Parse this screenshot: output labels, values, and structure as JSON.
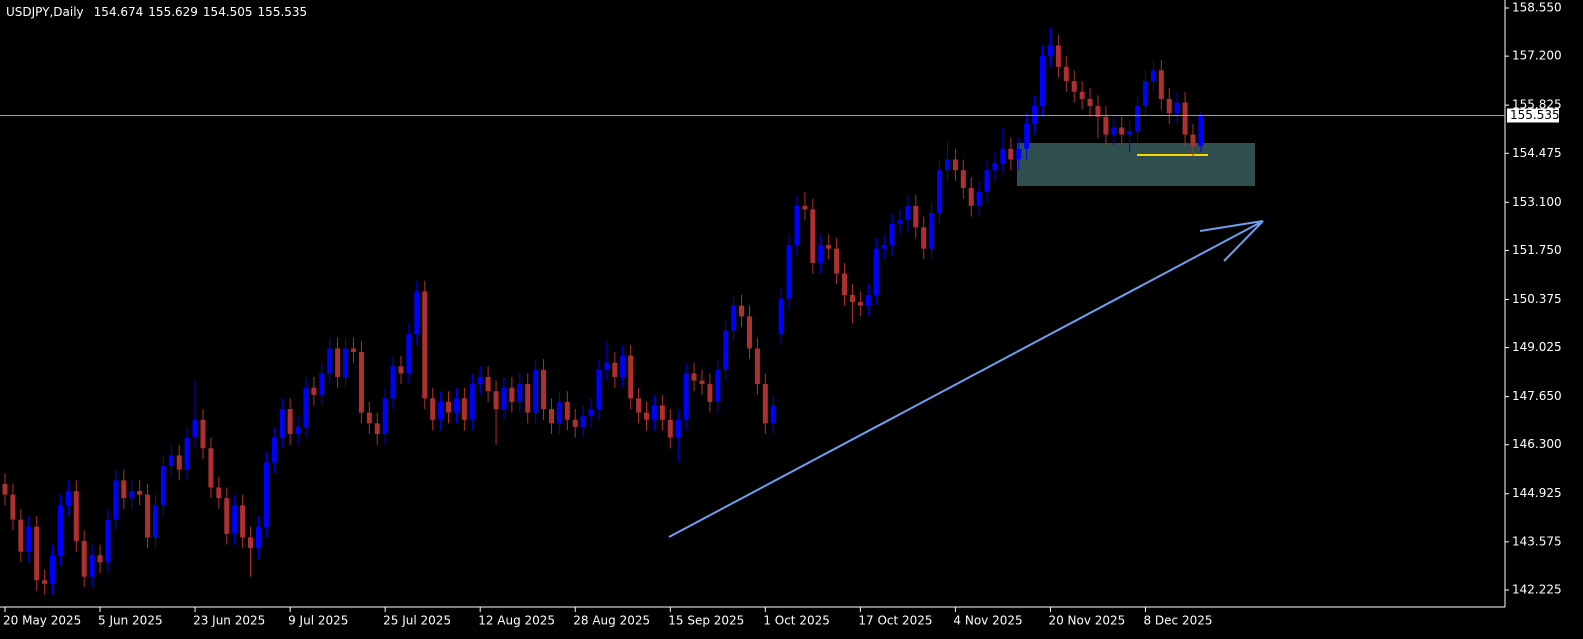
{
  "chart_data": {
    "type": "candlestick",
    "symbol": "USDJPY,Daily",
    "up_color": "#0000ff",
    "down_color": "#b03030",
    "ylim": [
      142.225,
      158.55
    ],
    "yticks": [
      {
        "value": 158.55,
        "label": "158.550"
      },
      {
        "value": 157.2,
        "label": "157.200"
      },
      {
        "value": 155.825,
        "label": "155.825"
      },
      {
        "value": 154.475,
        "label": "154.475"
      },
      {
        "value": 153.1,
        "label": "153.100"
      },
      {
        "value": 151.75,
        "label": "151.750"
      },
      {
        "value": 150.375,
        "label": "150.375"
      },
      {
        "value": 149.025,
        "label": "149.025"
      },
      {
        "value": 147.65,
        "label": "147.650"
      },
      {
        "value": 146.3,
        "label": "146.300"
      },
      {
        "value": 144.925,
        "label": "144.925"
      },
      {
        "value": 143.575,
        "label": "143.575"
      },
      {
        "value": 142.225,
        "label": "142.225"
      }
    ],
    "categories": [
      "20 May 2025",
      null,
      null,
      null,
      null,
      null,
      null,
      null,
      null,
      null,
      null,
      null,
      "5 Jun 2025",
      null,
      null,
      null,
      null,
      null,
      null,
      null,
      null,
      null,
      null,
      null,
      "23 Jun 2025",
      null,
      null,
      null,
      null,
      null,
      null,
      null,
      null,
      null,
      null,
      null,
      "9 Jul 2025",
      null,
      null,
      null,
      null,
      null,
      null,
      null,
      null,
      null,
      null,
      null,
      "25 Jul 2025",
      null,
      null,
      null,
      null,
      null,
      null,
      null,
      null,
      null,
      null,
      null,
      "12 Aug 2025",
      null,
      null,
      null,
      null,
      null,
      null,
      null,
      null,
      null,
      null,
      null,
      "28 Aug 2025",
      null,
      null,
      null,
      null,
      null,
      null,
      null,
      null,
      null,
      null,
      null,
      "15 Sep 2025",
      null,
      null,
      null,
      null,
      null,
      null,
      null,
      null,
      null,
      null,
      null,
      "1 Oct 2025",
      null,
      null,
      null,
      null,
      null,
      null,
      null,
      null,
      null,
      null,
      null,
      "17 Oct 2025",
      null,
      null,
      null,
      null,
      null,
      null,
      null,
      null,
      null,
      null,
      null,
      "4 Nov 2025",
      null,
      null,
      null,
      null,
      null,
      null,
      null,
      null,
      null,
      null,
      null,
      "20 Nov 2025",
      null,
      null,
      null,
      null,
      null,
      null,
      null,
      null,
      null,
      null,
      null,
      "8 Dec 2025",
      null,
      null,
      null,
      null,
      null,
      null,
      null
    ],
    "ohlc": [
      [
        145.2,
        145.5,
        144.6,
        144.9
      ],
      [
        144.9,
        145.2,
        143.9,
        144.2
      ],
      [
        144.2,
        144.5,
        143.0,
        143.3
      ],
      [
        143.3,
        144.3,
        143.0,
        144.0
      ],
      [
        144.0,
        144.3,
        142.2,
        142.5
      ],
      [
        142.5,
        142.8,
        142.1,
        142.4
      ],
      [
        142.4,
        143.5,
        142.1,
        143.2
      ],
      [
        143.2,
        144.9,
        142.9,
        144.6
      ],
      [
        144.6,
        145.3,
        144.3,
        145.0
      ],
      [
        145.0,
        145.3,
        143.3,
        143.6
      ],
      [
        143.6,
        143.9,
        142.3,
        142.6
      ],
      [
        142.6,
        143.5,
        142.3,
        143.2
      ],
      [
        143.2,
        143.5,
        142.7,
        143.0
      ],
      [
        143.0,
        144.5,
        142.7,
        144.2
      ],
      [
        144.2,
        145.6,
        143.9,
        145.3
      ],
      [
        145.3,
        145.6,
        144.5,
        144.8
      ],
      [
        144.8,
        145.3,
        144.5,
        145.0
      ],
      [
        145.0,
        145.3,
        144.6,
        144.9
      ],
      [
        144.9,
        145.2,
        143.4,
        143.7
      ],
      [
        143.7,
        144.9,
        143.4,
        144.6
      ],
      [
        144.6,
        146.0,
        144.3,
        145.7
      ],
      [
        145.7,
        146.3,
        145.4,
        146.0
      ],
      [
        146.0,
        146.3,
        145.3,
        145.6
      ],
      [
        145.6,
        146.8,
        145.3,
        146.5
      ],
      [
        146.5,
        148.1,
        146.2,
        147.0
      ],
      [
        147.0,
        147.3,
        145.9,
        146.2
      ],
      [
        146.2,
        146.5,
        144.8,
        145.1
      ],
      [
        145.1,
        145.4,
        144.5,
        144.8
      ],
      [
        144.8,
        145.1,
        143.5,
        143.8
      ],
      [
        143.8,
        144.9,
        143.5,
        144.6
      ],
      [
        144.6,
        144.9,
        143.4,
        143.7
      ],
      [
        143.7,
        144.0,
        142.6,
        143.4
      ],
      [
        143.4,
        144.3,
        143.1,
        144.0
      ],
      [
        144.0,
        146.1,
        143.7,
        145.8
      ],
      [
        145.8,
        146.8,
        145.5,
        146.5
      ],
      [
        146.5,
        147.6,
        146.2,
        147.3
      ],
      [
        147.3,
        147.6,
        146.3,
        146.6
      ],
      [
        146.6,
        147.1,
        146.3,
        146.8
      ],
      [
        146.8,
        148.2,
        146.5,
        147.9
      ],
      [
        147.9,
        148.2,
        147.4,
        147.7
      ],
      [
        147.7,
        148.6,
        147.4,
        148.3
      ],
      [
        148.3,
        149.3,
        148.0,
        149.0
      ],
      [
        149.0,
        149.3,
        147.9,
        148.2
      ],
      [
        148.2,
        149.3,
        147.9,
        149.0
      ],
      [
        149.0,
        149.3,
        148.6,
        148.9
      ],
      [
        148.9,
        149.2,
        146.9,
        147.2
      ],
      [
        147.2,
        147.5,
        146.6,
        146.9
      ],
      [
        146.9,
        147.2,
        146.3,
        146.6
      ],
      [
        146.6,
        147.9,
        146.3,
        147.6
      ],
      [
        147.6,
        148.8,
        147.3,
        148.5
      ],
      [
        148.5,
        148.8,
        148.0,
        148.3
      ],
      [
        148.3,
        149.7,
        148.0,
        149.4
      ],
      [
        149.4,
        150.9,
        149.1,
        150.6
      ],
      [
        150.6,
        150.9,
        147.3,
        147.6
      ],
      [
        147.6,
        147.9,
        146.7,
        147.0
      ],
      [
        147.0,
        147.8,
        146.7,
        147.5
      ],
      [
        147.5,
        147.8,
        146.9,
        147.2
      ],
      [
        147.2,
        147.9,
        146.9,
        147.6
      ],
      [
        147.6,
        147.9,
        146.7,
        147.0
      ],
      [
        147.0,
        148.3,
        146.7,
        148.0
      ],
      [
        148.0,
        148.5,
        147.7,
        148.2
      ],
      [
        148.2,
        148.5,
        147.5,
        147.8
      ],
      [
        147.8,
        148.1,
        146.3,
        147.3
      ],
      [
        147.3,
        148.2,
        147.0,
        147.9
      ],
      [
        147.9,
        148.2,
        147.2,
        147.5
      ],
      [
        147.5,
        148.3,
        147.2,
        148.0
      ],
      [
        148.0,
        148.3,
        146.9,
        147.2
      ],
      [
        147.2,
        148.7,
        146.9,
        148.4
      ],
      [
        148.4,
        148.7,
        147.0,
        147.3
      ],
      [
        147.3,
        147.6,
        146.6,
        146.9
      ],
      [
        146.9,
        147.8,
        146.6,
        147.5
      ],
      [
        147.5,
        147.8,
        146.7,
        147.0
      ],
      [
        147.0,
        147.3,
        146.5,
        146.8
      ],
      [
        146.8,
        147.4,
        146.5,
        147.1
      ],
      [
        147.1,
        147.6,
        146.8,
        147.3
      ],
      [
        147.3,
        148.7,
        147.0,
        148.4
      ],
      [
        148.4,
        149.2,
        148.1,
        148.6
      ],
      [
        148.6,
        148.9,
        147.9,
        148.2
      ],
      [
        148.2,
        149.1,
        147.9,
        148.8
      ],
      [
        148.8,
        149.1,
        147.3,
        147.6
      ],
      [
        147.6,
        147.9,
        146.9,
        147.2
      ],
      [
        147.2,
        147.5,
        146.7,
        147.0
      ],
      [
        147.0,
        147.7,
        146.7,
        147.4
      ],
      [
        147.4,
        147.7,
        146.7,
        147.0
      ],
      [
        147.0,
        147.3,
        146.2,
        146.5
      ],
      [
        146.5,
        147.3,
        145.8,
        147.0
      ],
      [
        147.0,
        148.6,
        146.7,
        148.3
      ],
      [
        148.3,
        148.6,
        147.8,
        148.1
      ],
      [
        148.1,
        148.4,
        147.7,
        148.0
      ],
      [
        148.0,
        148.3,
        147.2,
        147.5
      ],
      [
        147.5,
        148.7,
        147.2,
        148.4
      ],
      [
        148.4,
        149.8,
        148.1,
        149.5
      ],
      [
        149.5,
        150.5,
        149.2,
        150.2
      ],
      [
        150.2,
        150.5,
        149.6,
        149.9
      ],
      [
        149.9,
        150.2,
        148.7,
        149.0
      ],
      [
        149.0,
        149.3,
        147.7,
        148.0
      ],
      [
        148.0,
        148.3,
        146.6,
        146.9
      ],
      [
        146.9,
        147.7,
        146.6,
        147.4
      ],
      [
        149.4,
        150.7,
        149.1,
        150.4
      ],
      [
        150.4,
        152.2,
        150.1,
        151.9
      ],
      [
        151.9,
        153.3,
        151.6,
        153.0
      ],
      [
        153.0,
        153.4,
        152.6,
        152.9
      ],
      [
        152.9,
        153.2,
        151.1,
        151.4
      ],
      [
        151.4,
        152.2,
        151.1,
        151.9
      ],
      [
        151.9,
        152.2,
        151.5,
        151.8
      ],
      [
        151.8,
        152.1,
        150.8,
        151.1
      ],
      [
        151.1,
        151.4,
        150.2,
        150.5
      ],
      [
        150.5,
        150.8,
        149.7,
        150.3
      ],
      [
        150.3,
        150.6,
        149.9,
        150.2
      ],
      [
        150.2,
        150.8,
        149.9,
        150.5
      ],
      [
        150.5,
        152.1,
        150.2,
        151.8
      ],
      [
        151.8,
        152.2,
        151.5,
        151.9
      ],
      [
        151.9,
        152.8,
        151.6,
        152.5
      ],
      [
        152.5,
        152.9,
        152.2,
        152.6
      ],
      [
        152.6,
        153.3,
        152.3,
        153.0
      ],
      [
        153.0,
        153.3,
        152.1,
        152.4
      ],
      [
        152.4,
        152.7,
        151.5,
        151.8
      ],
      [
        151.8,
        153.1,
        151.5,
        152.8
      ],
      [
        152.8,
        154.3,
        152.5,
        154.0
      ],
      [
        154.0,
        154.8,
        153.7,
        154.3
      ],
      [
        154.3,
        154.6,
        153.7,
        154.0
      ],
      [
        154.0,
        154.3,
        153.2,
        153.5
      ],
      [
        153.5,
        153.8,
        152.7,
        153.0
      ],
      [
        153.0,
        153.7,
        152.7,
        153.4
      ],
      [
        153.4,
        154.3,
        153.1,
        154.0
      ],
      [
        154.0,
        154.5,
        153.7,
        154.2
      ],
      [
        154.2,
        155.2,
        153.9,
        154.6
      ],
      [
        154.6,
        154.9,
        154.0,
        154.3
      ],
      [
        154.3,
        154.9,
        154.0,
        154.6
      ],
      [
        154.6,
        155.6,
        154.3,
        155.3
      ],
      [
        155.3,
        156.1,
        155.0,
        155.8
      ],
      [
        155.8,
        157.5,
        155.5,
        157.2
      ],
      [
        157.2,
        158.0,
        156.9,
        157.5
      ],
      [
        157.5,
        157.8,
        156.6,
        156.9
      ],
      [
        156.9,
        157.2,
        156.2,
        156.5
      ],
      [
        156.5,
        156.8,
        155.9,
        156.2
      ],
      [
        156.2,
        156.5,
        155.7,
        156.0
      ],
      [
        156.0,
        156.3,
        155.5,
        155.8
      ],
      [
        155.8,
        156.1,
        154.9,
        155.5
      ],
      [
        155.5,
        155.8,
        154.7,
        155.0
      ],
      [
        155.0,
        155.5,
        154.7,
        155.2
      ],
      [
        155.2,
        155.5,
        154.7,
        155.0
      ],
      [
        155.0,
        155.4,
        154.5,
        155.1
      ],
      [
        155.1,
        156.1,
        154.8,
        155.8
      ],
      [
        155.8,
        156.8,
        155.5,
        156.5
      ],
      [
        156.5,
        157.1,
        156.2,
        156.8
      ],
      [
        156.8,
        157.1,
        155.7,
        156.0
      ],
      [
        156.0,
        156.3,
        155.3,
        155.6
      ],
      [
        155.6,
        156.2,
        155.3,
        155.9
      ],
      [
        155.9,
        156.2,
        154.7,
        155.0
      ],
      [
        155.0,
        155.3,
        154.4,
        154.67
      ],
      [
        154.674,
        155.629,
        154.505,
        155.535
      ]
    ]
  }
}
